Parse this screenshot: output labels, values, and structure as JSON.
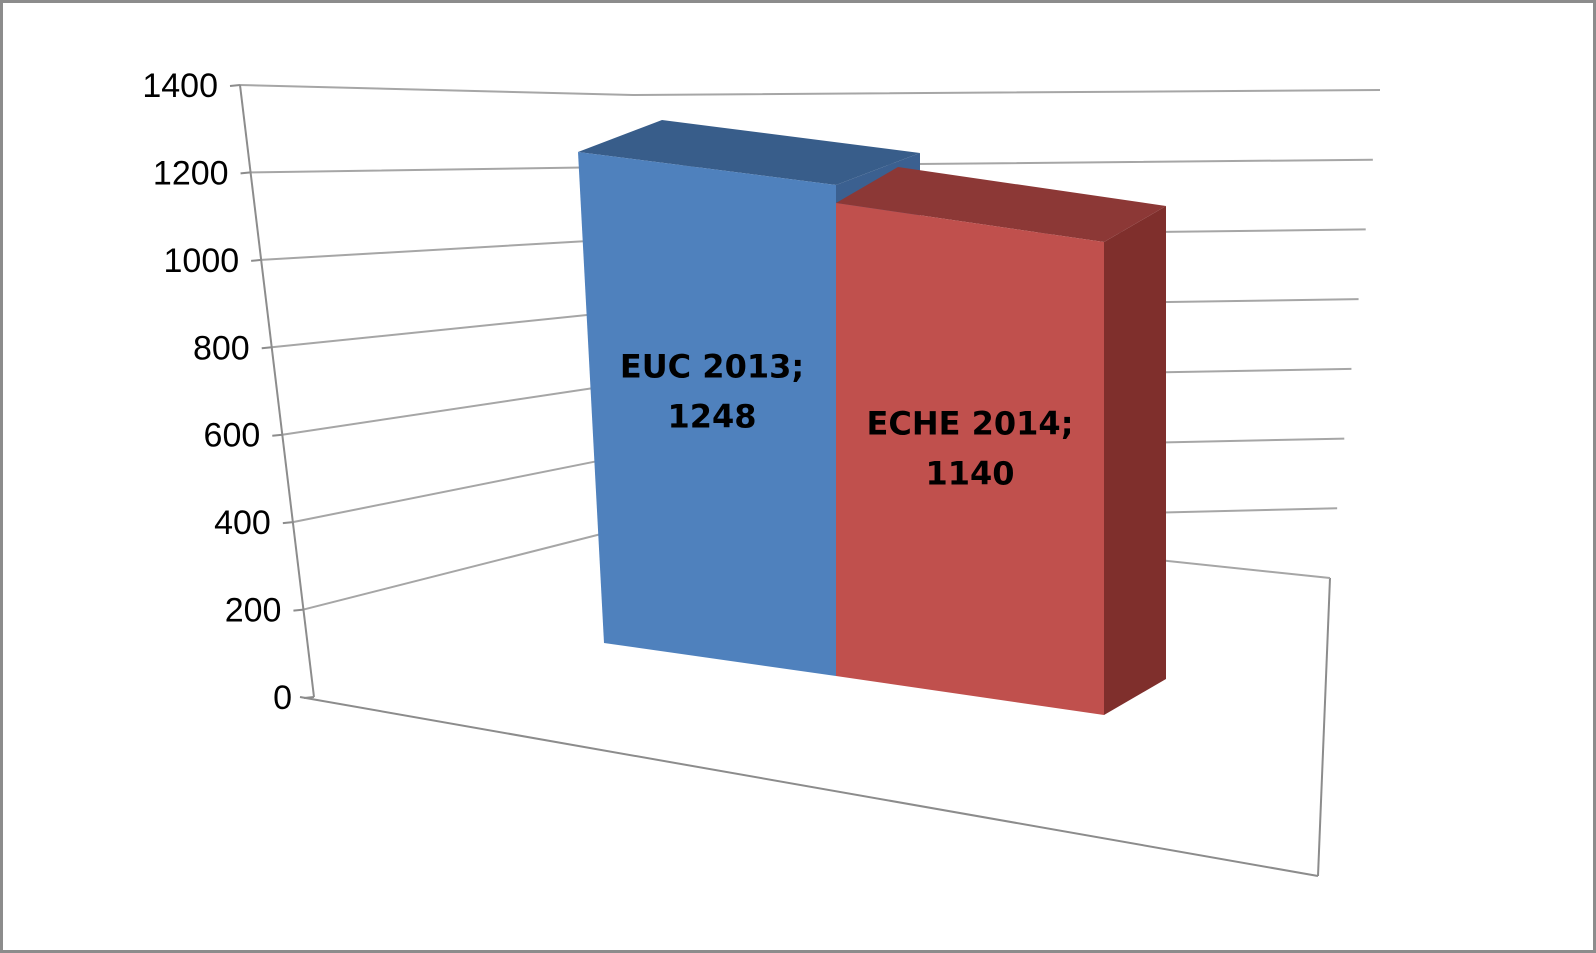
{
  "chart_data": {
    "type": "bar",
    "style": "3d-column",
    "categories": [
      "EUC 2013",
      "ECHE 2014"
    ],
    "values": [
      1248,
      1140
    ],
    "data_labels": [
      [
        "EUC 2013;",
        "1248"
      ],
      [
        "ECHE 2014;",
        "1140"
      ]
    ],
    "ylim": [
      0,
      1400
    ],
    "yticks": [
      "0",
      "200",
      "400",
      "600",
      "800",
      "1000",
      "1200",
      "1400"
    ],
    "grid": true,
    "legend": "none",
    "colors": {
      "series": [
        "#4f81bd",
        "#c0504d"
      ],
      "series_shade": [
        "#385d8a",
        "#8c3836"
      ],
      "series_side": [
        "#3b6090",
        "#7f2f2c"
      ],
      "gridline": "#a6a6a6",
      "frame": "#8c8c8c"
    }
  }
}
